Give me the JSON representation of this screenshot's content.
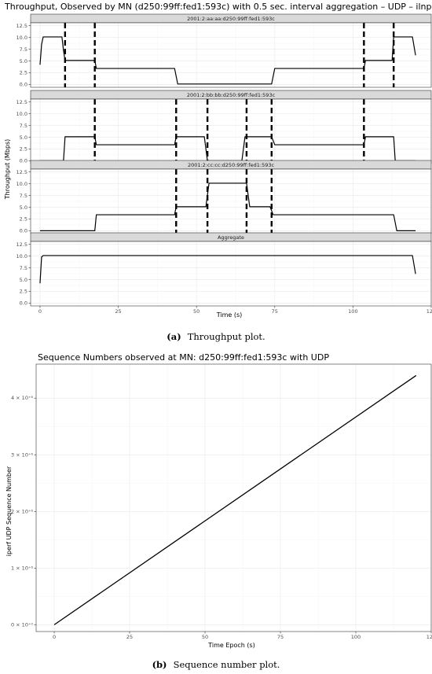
{
  "figure_a": {
    "caption_label": "(a)",
    "caption_text": "Throughput plot.",
    "chart_data": {
      "type": "line",
      "title": "Throughput, Observed by MN (d250:99ff:fed1:593c) with 0.5 sec. interval aggregation – UDP – ilnp",
      "xlabel": "Time (s)",
      "ylabel": "Throughput (Mbps)",
      "xlim": [
        -3,
        125
      ],
      "ylim": [
        -0.6,
        13.1
      ],
      "x_ticks": [
        0,
        25,
        50,
        75,
        100,
        125
      ],
      "y_ticks": [
        0.0,
        2.5,
        5.0,
        7.5,
        10.0,
        12.5
      ],
      "x_tick_labels": [
        "0",
        "25",
        "50",
        "75",
        "100",
        "125"
      ],
      "y_tick_labels": [
        "0.0",
        "2.5",
        "5.0",
        "7.5",
        "10.0",
        "12.5"
      ],
      "grid": true,
      "panels": [
        {
          "strip": "2001:2:aa:aa:d250:99ff:fed1:593c",
          "x": [
            0,
            0.5,
            1,
            7,
            7.5,
            8,
            17.5,
            18,
            43,
            44,
            54,
            74,
            75,
            103.5,
            104,
            112.5,
            113,
            119,
            120
          ],
          "y": [
            4.2,
            8.5,
            10.1,
            10.1,
            7.2,
            5.1,
            5.1,
            3.4,
            3.4,
            0.1,
            0.1,
            0.1,
            3.4,
            3.4,
            5.1,
            5.1,
            10.1,
            10.1,
            6.2
          ],
          "event_lines": [
            8,
            17.5,
            103.5,
            113
          ]
        },
        {
          "strip": "2001:2:bb:bb:d250:99ff:fed1:593c",
          "x": [
            0,
            7.5,
            8,
            17.5,
            18,
            43,
            43.5,
            52.5,
            53.5,
            64.5,
            65.5,
            74,
            75,
            103.5,
            104,
            113,
            113.5,
            120
          ],
          "y": [
            0,
            0,
            5.1,
            5.1,
            3.4,
            3.4,
            5.1,
            5.1,
            0,
            0,
            5.1,
            5.1,
            3.4,
            3.4,
            5.1,
            5.1,
            0,
            0
          ],
          "event_lines": [
            17.5,
            43.5,
            53.5,
            66,
            74,
            103.5
          ]
        },
        {
          "strip": "2001:2:cc:cc:d250:99ff:fed1:593c",
          "x": [
            0,
            17.5,
            18,
            43,
            43.5,
            53,
            54,
            66,
            67,
            73.5,
            74.5,
            113,
            114,
            120
          ],
          "y": [
            0,
            0,
            3.4,
            3.4,
            5.1,
            5.1,
            10.1,
            10.1,
            5.1,
            5.1,
            3.4,
            3.4,
            0,
            0
          ],
          "event_lines": [
            43.5,
            53.5,
            66,
            74
          ]
        },
        {
          "strip": "Aggregate",
          "x": [
            0,
            0.5,
            1,
            119,
            120
          ],
          "y": [
            4.2,
            9.8,
            10.1,
            10.1,
            6.2
          ],
          "event_lines": []
        }
      ]
    }
  },
  "figure_b": {
    "caption_label": "(b)",
    "caption_text": "Sequence number plot.",
    "chart_data": {
      "type": "line",
      "title": "Sequence Numbers observed at MN: d250:99ff:fed1:593c with UDP",
      "xlabel": "Time Epoch (s)",
      "ylabel": "iperf UDP Sequence Number",
      "xlim": [
        -6,
        125
      ],
      "ylim": [
        -0.12,
        4.6
      ],
      "x_ticks": [
        0,
        25,
        50,
        75,
        100,
        125
      ],
      "x_tick_labels": [
        "0",
        "25",
        "50",
        "75",
        "100",
        "125"
      ],
      "y_ticks": [
        0,
        1,
        2,
        3,
        4
      ],
      "y_tick_labels": [
        "0 × 10⁺⁰",
        "1 × 10⁺⁶",
        "2 × 10⁺⁶",
        "3 × 10⁺⁶",
        "4 × 10⁺⁶"
      ],
      "grid": true,
      "series": [
        {
          "x": [
            0,
            120
          ],
          "y": [
            0,
            4.4
          ]
        }
      ]
    }
  }
}
